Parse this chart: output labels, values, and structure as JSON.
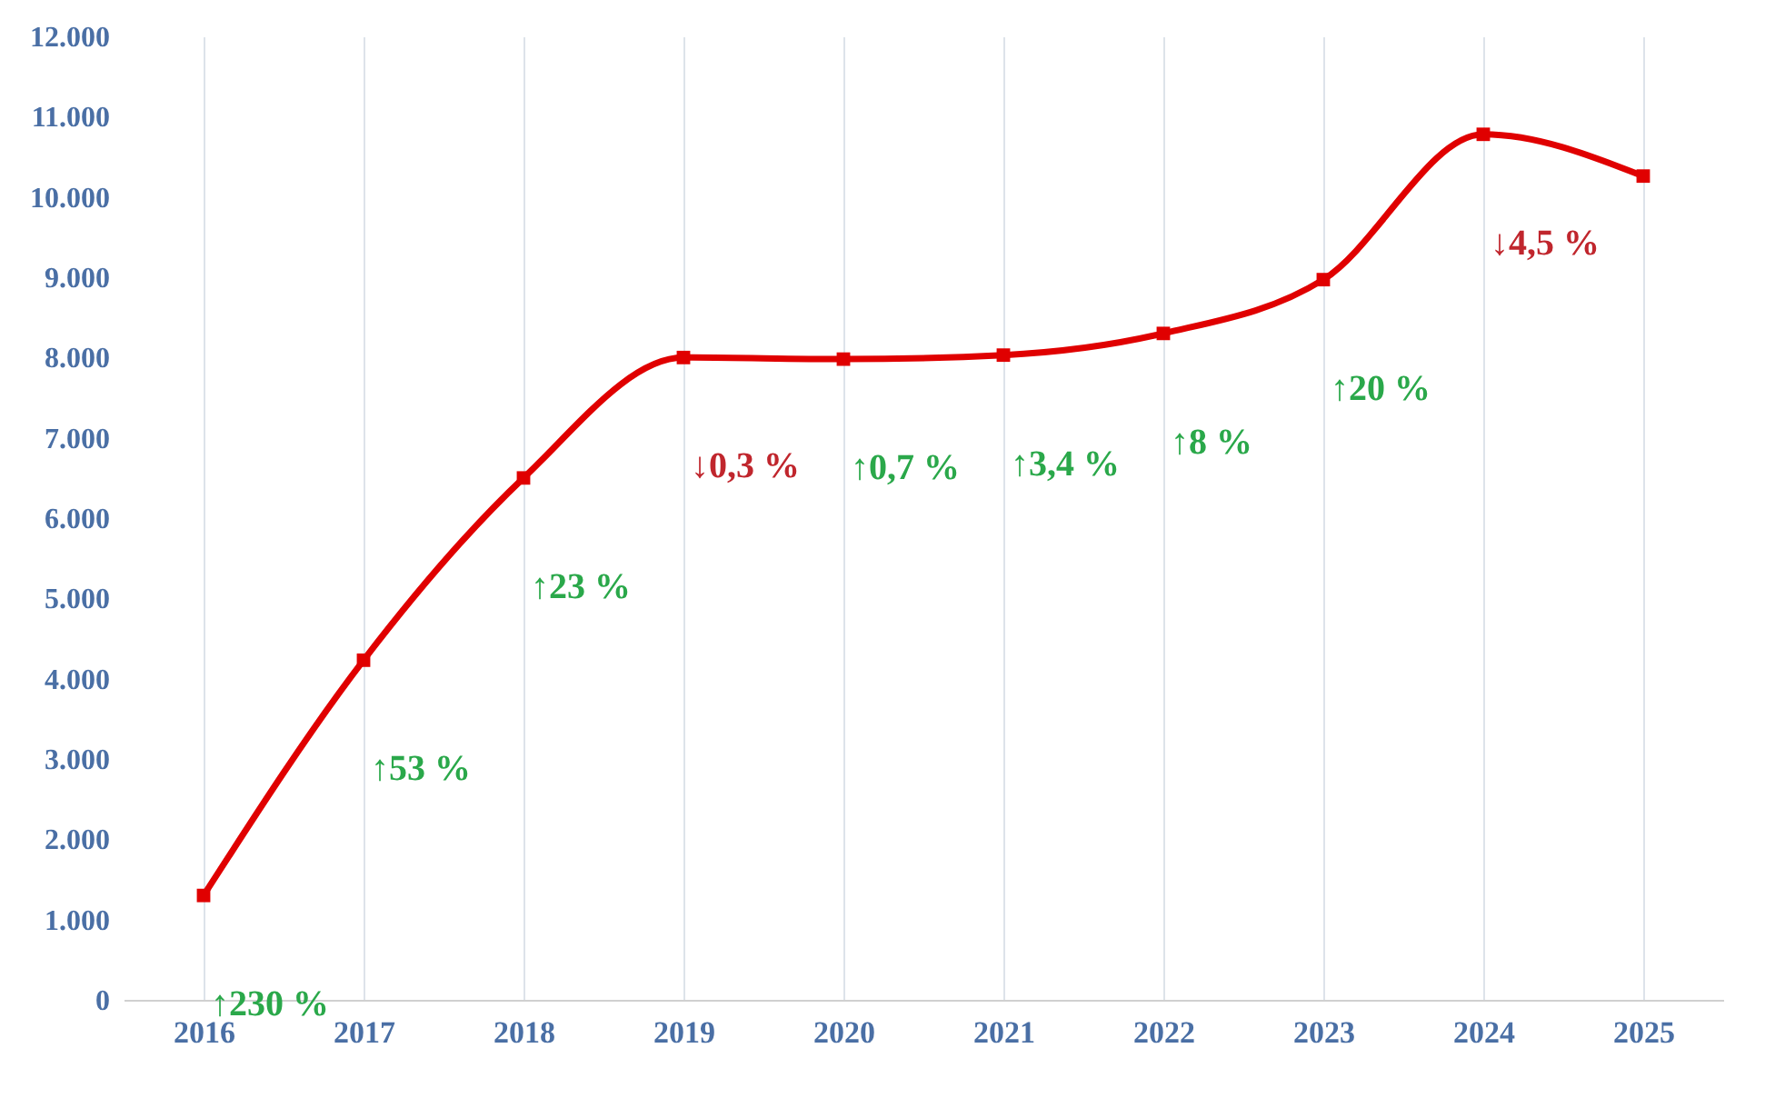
{
  "chart_data": {
    "type": "line",
    "categories": [
      "2016",
      "2017",
      "2018",
      "2019",
      "2020",
      "2021",
      "2022",
      "2023",
      "2024",
      "2025"
    ],
    "series": [
      {
        "color": "#e00000",
        "values": [
          1300,
          4230,
          6500,
          8000,
          7980,
          8030,
          8300,
          8970,
          10780,
          10260
        ]
      }
    ],
    "ylim": [
      0,
      12000
    ],
    "yticks": [
      {
        "value": 0,
        "label": "0"
      },
      {
        "value": 1000,
        "label": "1.000"
      },
      {
        "value": 2000,
        "label": "2.000"
      },
      {
        "value": 3000,
        "label": "3.000"
      },
      {
        "value": 4000,
        "label": "4.000"
      },
      {
        "value": 5000,
        "label": "5.000"
      },
      {
        "value": 6000,
        "label": "6.000"
      },
      {
        "value": 7000,
        "label": "7.000"
      },
      {
        "value": 8000,
        "label": "8.000"
      },
      {
        "value": 9000,
        "label": "9.000"
      },
      {
        "value": 10000,
        "label": "10.000"
      },
      {
        "value": 11000,
        "label": "11.000"
      },
      {
        "value": 12000,
        "label": "12.000"
      }
    ],
    "grid": "x",
    "marker": "square",
    "line_style": "solid",
    "annotations": [
      "↑230 %",
      "↑53 %",
      "↑23 %",
      "↓0,3 %",
      "↑0,7 %",
      "↑3,4 %",
      "↑8 %",
      "↑20 %",
      "↓4,5 %"
    ]
  }
}
